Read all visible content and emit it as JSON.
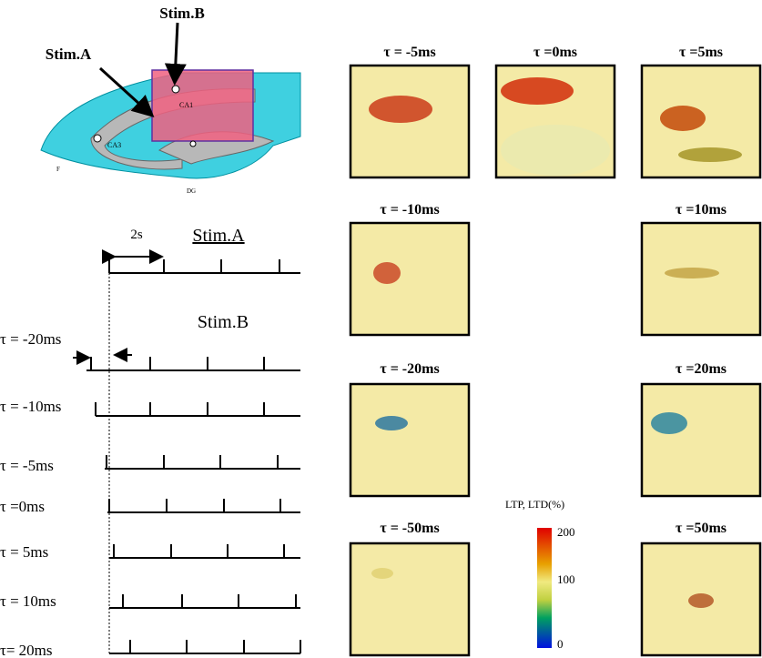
{
  "diagram": {
    "stim_b": "Stim.B",
    "stim_a": "Stim.A",
    "regions": [
      "CA1",
      "CA3",
      "DG",
      "F"
    ]
  },
  "timing": {
    "interval": "2s",
    "stim_a": "Stim.A",
    "stim_b": "Stim.B",
    "rows": [
      "τ = -20ms",
      "τ = -10ms",
      "τ = -5ms",
      "τ =0ms",
      "τ = 5ms",
      "τ = 10ms",
      "τ= 20ms"
    ]
  },
  "panels": [
    "τ  = -5ms",
    "τ =0ms",
    "τ =5ms",
    "τ  = -10ms",
    "τ  =10ms",
    "τ  = -20ms",
    "τ =20ms",
    "τ  = -50ms",
    "τ =50ms"
  ],
  "colorbar": {
    "title": "LTP, LTD(%)",
    "ticks": [
      "200",
      "100",
      "0"
    ]
  }
}
